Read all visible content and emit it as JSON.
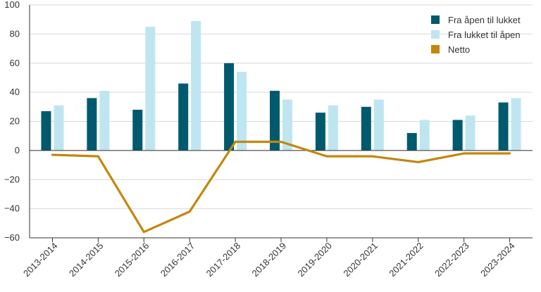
{
  "chart_data": {
    "type": "bar",
    "title": "",
    "xlabel": "",
    "ylabel": "",
    "categories": [
      "2013-2014",
      "2014-2015",
      "2015-2016",
      "2016-2017",
      "2017-2018",
      "2018-2019",
      "2019-2020",
      "2020-2021",
      "2021-2022",
      "2022-2023",
      "2023-2024"
    ],
    "ylim": [
      -60,
      100
    ],
    "yticks": [
      100,
      80,
      60,
      40,
      20,
      0,
      -20,
      -40,
      -60
    ],
    "yticks_text": [
      "100",
      "80",
      "60",
      "40",
      "20",
      "0",
      "−20",
      "−40",
      "−60"
    ],
    "grid": true,
    "legend_position": "top-right",
    "series": [
      {
        "name": "Fra åpen til lukket",
        "type": "bar",
        "color": "#005a6e",
        "values": [
          27,
          36,
          28,
          46,
          60,
          41,
          26,
          30,
          12,
          21,
          33
        ]
      },
      {
        "name": "Fra lukket til åpen",
        "type": "bar",
        "color": "#bfe6f0",
        "values": [
          31,
          41,
          85,
          89,
          54,
          35,
          31,
          35,
          21,
          24,
          36
        ]
      },
      {
        "name": "Netto",
        "type": "line",
        "color": "#c4860c",
        "values": [
          -3,
          -4,
          -56,
          -42,
          6,
          6,
          -4,
          -4,
          -8,
          -2,
          -2
        ]
      }
    ]
  }
}
